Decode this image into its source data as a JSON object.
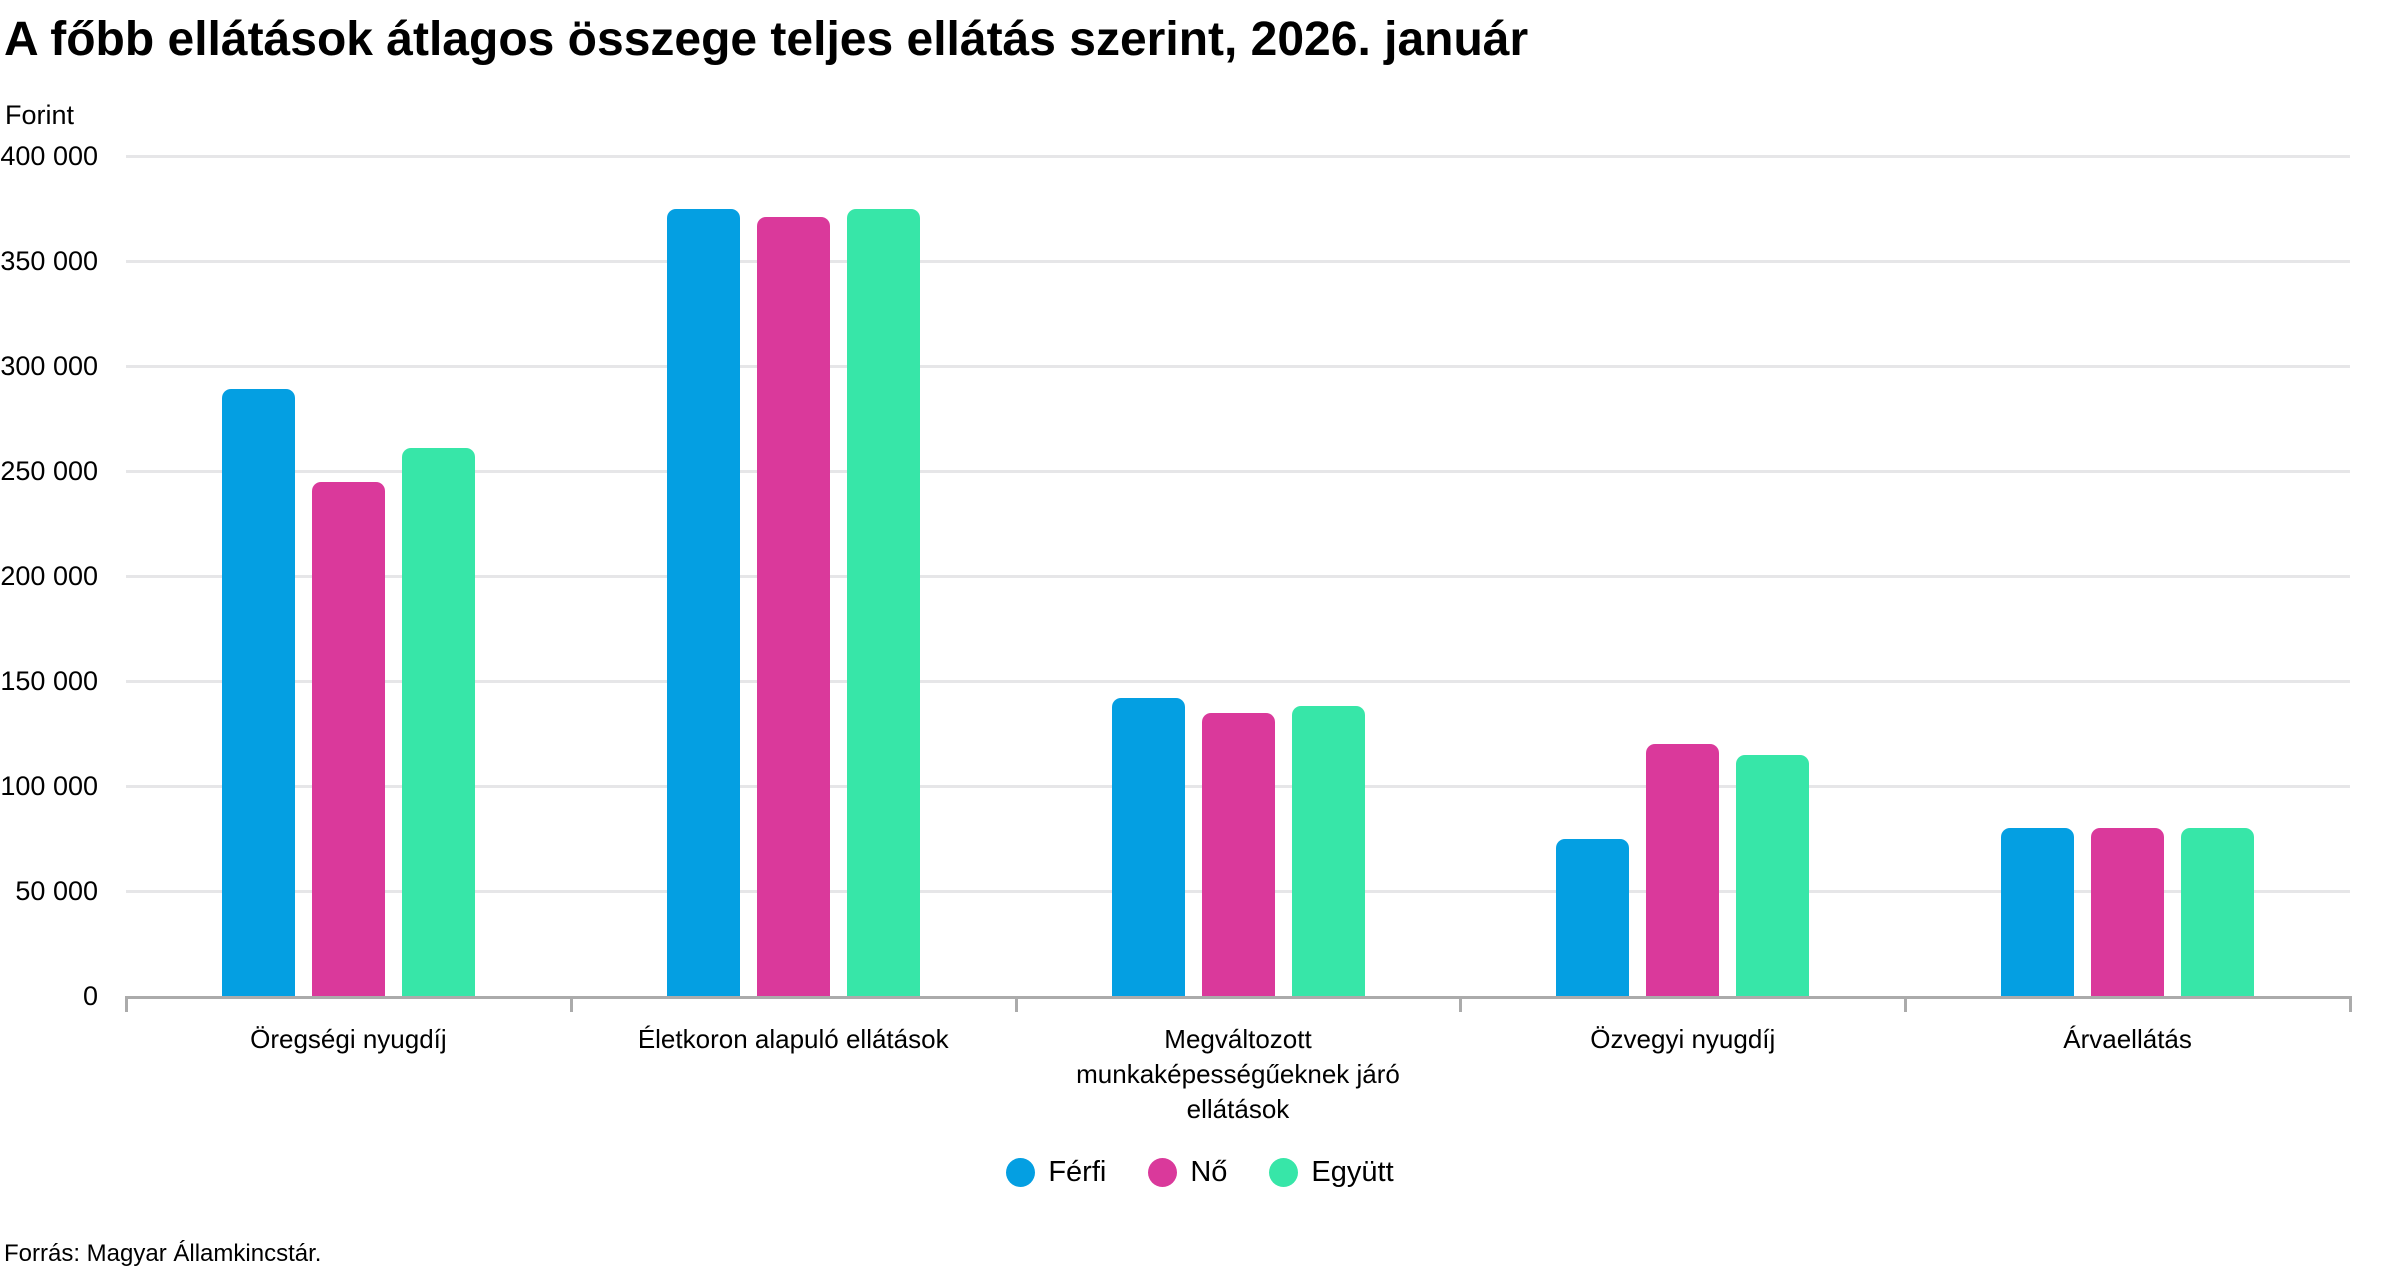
{
  "title": "A főbb ellátások átlagos összege teljes ellátás szerint, 2026. január",
  "source_note": "Forrás: Magyar Államkincstár.",
  "colors": {
    "ferfi_blue": "#049FE2",
    "no_magenta": "#DA399B",
    "egyutt_green": "#37E6A8",
    "gridline": "#E6E6E8",
    "axis": "#ABABAB",
    "text": "#000000",
    "background": "#FFFFFF"
  },
  "chart_data": {
    "type": "bar",
    "title": "A főbb ellátások átlagos összege teljes ellátás szerint, 2026. január",
    "xlabel": "",
    "ylabel": "Forint",
    "ylim": [
      0,
      400000
    ],
    "ytick_step": 50000,
    "yticks": [
      0,
      50000,
      100000,
      150000,
      200000,
      250000,
      300000,
      350000,
      400000
    ],
    "ytick_labels": [
      "0",
      "50 000",
      "100 000",
      "150 000",
      "200 000",
      "250 000",
      "300 000",
      "350 000",
      "400 000"
    ],
    "grid": "horizontal",
    "legend_position": "bottom-center",
    "categories": [
      "Öregségi nyugdíj",
      "Életkoron alapuló ellátások",
      "Megváltozott\nmunkaképességűeknek járó\nellátások",
      "Özvegyi nyugdíj",
      "Árvaellátás"
    ],
    "series": [
      {
        "name": "Férfi",
        "color": "#049FE2",
        "values": [
          289000,
          375000,
          142000,
          75000,
          80000
        ]
      },
      {
        "name": "Nő",
        "color": "#DA399B",
        "values": [
          245000,
          371000,
          135000,
          120000,
          80000
        ]
      },
      {
        "name": "Együtt",
        "color": "#37E6A8",
        "values": [
          261000,
          375000,
          138000,
          115000,
          80000
        ]
      }
    ]
  }
}
